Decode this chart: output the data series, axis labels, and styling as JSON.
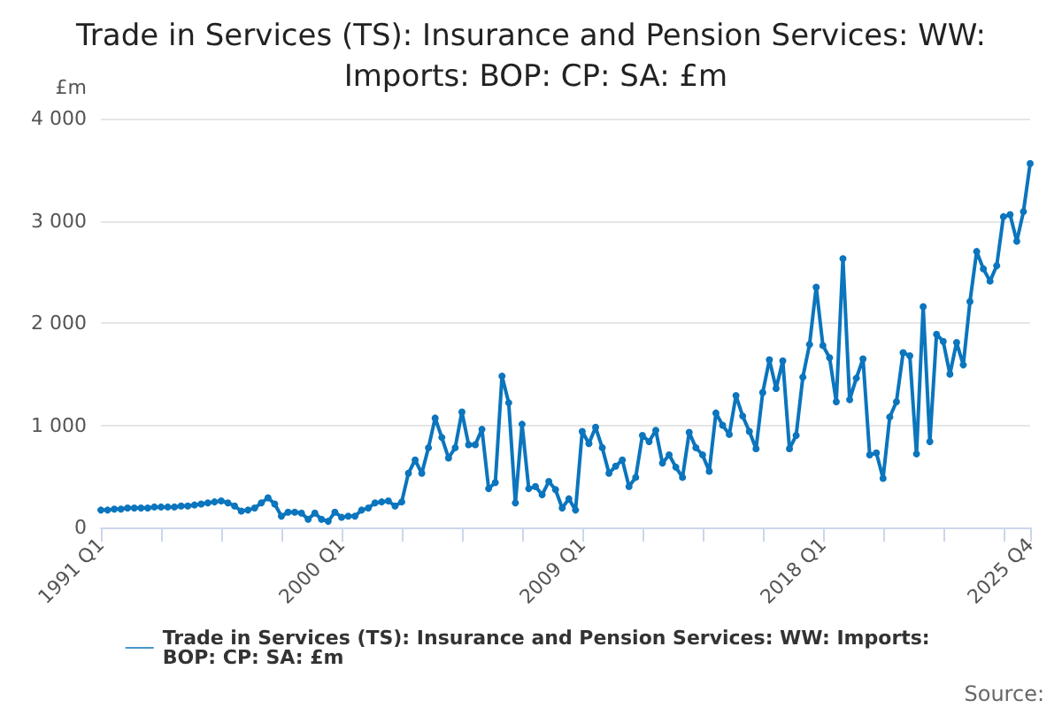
{
  "chart_data": {
    "type": "line",
    "title": "Trade in Services (TS): Insurance and Pension Services: WW: Imports: BOP: CP: SA: £m",
    "ylabel": "£m",
    "categories": [
      "1991 Q1",
      null,
      null,
      null,
      null,
      null,
      null,
      null,
      null,
      null,
      null,
      null,
      null,
      null,
      null,
      null,
      null,
      null,
      null,
      null,
      null,
      null,
      null,
      null,
      null,
      null,
      null,
      null,
      null,
      null,
      null,
      null,
      null,
      null,
      null,
      null,
      "2000 Q1",
      null,
      null,
      null,
      null,
      null,
      null,
      null,
      null,
      null,
      null,
      null,
      null,
      null,
      null,
      null,
      null,
      null,
      null,
      null,
      null,
      null,
      null,
      null,
      null,
      null,
      null,
      null,
      null,
      null,
      null,
      null,
      null,
      null,
      null,
      null,
      "2009 Q1",
      null,
      null,
      null,
      null,
      null,
      null,
      null,
      null,
      null,
      null,
      null,
      null,
      null,
      null,
      null,
      null,
      null,
      null,
      null,
      null,
      null,
      null,
      null,
      null,
      null,
      null,
      null,
      null,
      null,
      null,
      null,
      null,
      null,
      null,
      null,
      "2018 Q1",
      null,
      null,
      null,
      null,
      null,
      null,
      null,
      null,
      null,
      null,
      null,
      null,
      null,
      null,
      null,
      null,
      null,
      null,
      null,
      null,
      null,
      null,
      null,
      null,
      null,
      null,
      null,
      null,
      null,
      null,
      "2025 Q4"
    ],
    "series": [
      {
        "name": "Trade in Services (TS): Insurance and Pension Services: WW: Imports: BOP: CP: SA: £m",
        "color": "#0b75bd",
        "values": [
          170,
          170,
          180,
          180,
          190,
          190,
          190,
          190,
          200,
          200,
          200,
          200,
          210,
          210,
          220,
          230,
          240,
          250,
          260,
          240,
          210,
          160,
          170,
          190,
          240,
          290,
          230,
          110,
          150,
          150,
          140,
          80,
          140,
          80,
          60,
          150,
          100,
          110,
          110,
          170,
          190,
          240,
          250,
          260,
          210,
          250,
          530,
          660,
          530,
          780,
          1070,
          880,
          680,
          780,
          1130,
          810,
          810,
          960,
          380,
          440,
          1480,
          1220,
          240,
          1010,
          380,
          400,
          320,
          450,
          370,
          190,
          280,
          170,
          940,
          820,
          980,
          780,
          530,
          600,
          660,
          400,
          490,
          900,
          840,
          950,
          630,
          710,
          590,
          490,
          930,
          780,
          710,
          550,
          1120,
          1000,
          910,
          1290,
          1090,
          940,
          770,
          1320,
          1640,
          1360,
          1630,
          770,
          900,
          1470,
          1790,
          2350,
          1780,
          1660,
          1230,
          2630,
          1250,
          1460,
          1650,
          710,
          730,
          480,
          1080,
          1230,
          1710,
          1680,
          720,
          2160,
          840,
          1890,
          1820,
          1500,
          1810,
          1590,
          2210,
          2700,
          2530,
          2410,
          2560,
          3040,
          3060,
          2800,
          3090,
          3560
        ]
      }
    ],
    "ylim": [
      0,
      4000
    ],
    "yticks": [
      0,
      {
        "value": 1000,
        "label": "1 000"
      },
      {
        "value": 2000,
        "label": "2 000"
      },
      {
        "value": 3000,
        "label": "3 000"
      },
      {
        "value": 4000,
        "label": "4 000"
      }
    ],
    "grid": "y",
    "legend": "bottom",
    "marker": "circle",
    "line_style": "solid",
    "annotations": [
      "Source:"
    ]
  }
}
